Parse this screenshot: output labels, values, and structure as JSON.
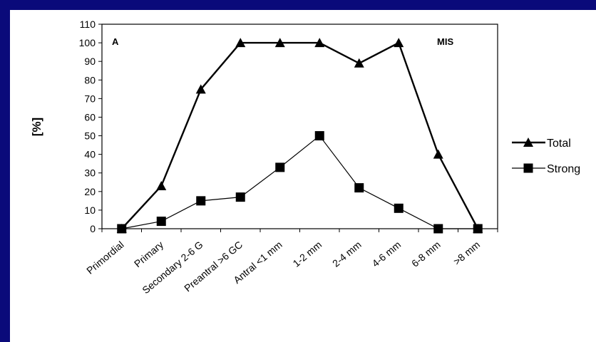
{
  "chart_data": {
    "type": "line",
    "panel_label": "A",
    "corner_label": "MIS",
    "ylabel": "[%]",
    "xlabel": "",
    "ylim": [
      0,
      110
    ],
    "yticks": [
      0,
      10,
      20,
      30,
      40,
      50,
      60,
      70,
      80,
      90,
      100,
      110
    ],
    "grid": false,
    "legend_position": "right",
    "categories": [
      "Primordial",
      "Primary",
      "Secondary 2-6 G",
      "Preantral >6 GC",
      "Antral <1 mm",
      "1-2 mm",
      "2-4 mm",
      "4-6 mm",
      "6-8 mm",
      ">8 mm"
    ],
    "series": [
      {
        "name": "Total",
        "marker": "triangle",
        "line_width": "thick",
        "values": [
          0,
          23,
          75,
          100,
          100,
          100,
          89,
          100,
          40,
          0
        ]
      },
      {
        "name": "Strong",
        "marker": "square",
        "line_width": "thin",
        "values": [
          0,
          4,
          15,
          17,
          33,
          50,
          22,
          11,
          0,
          0
        ]
      }
    ]
  },
  "colors": {
    "background": "#0a0a7a",
    "panel": "#ffffff",
    "ink": "#000000"
  }
}
